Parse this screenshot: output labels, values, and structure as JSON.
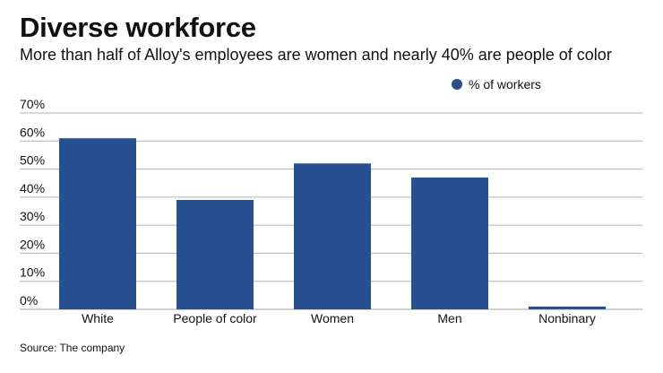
{
  "header": {
    "title": "Diverse workforce",
    "subtitle": "More than half of Alloy's employees are women and nearly 40% are people of color"
  },
  "legend": {
    "label": "% of workers",
    "placement": "top-right"
  },
  "footer": {
    "source": "Source: The company"
  },
  "colors": {
    "bar": "#26508f",
    "grid": "#b3b3b3",
    "text": "#111111"
  },
  "chart_data": {
    "type": "bar",
    "title": "Diverse workforce",
    "subtitle": "More than half of Alloy's employees are women and nearly 40% are people of color",
    "categories": [
      "White",
      "People of color",
      "Women",
      "Men",
      "Nonbinary"
    ],
    "series": [
      {
        "name": "% of workers",
        "values": [
          61,
          39,
          52,
          47,
          1
        ]
      }
    ],
    "yticks": [
      "0%",
      "10%",
      "20%",
      "30%",
      "40%",
      "50%",
      "60%",
      "70%"
    ],
    "ylim": [
      0,
      70
    ],
    "grid": true,
    "legend": "top-right"
  }
}
